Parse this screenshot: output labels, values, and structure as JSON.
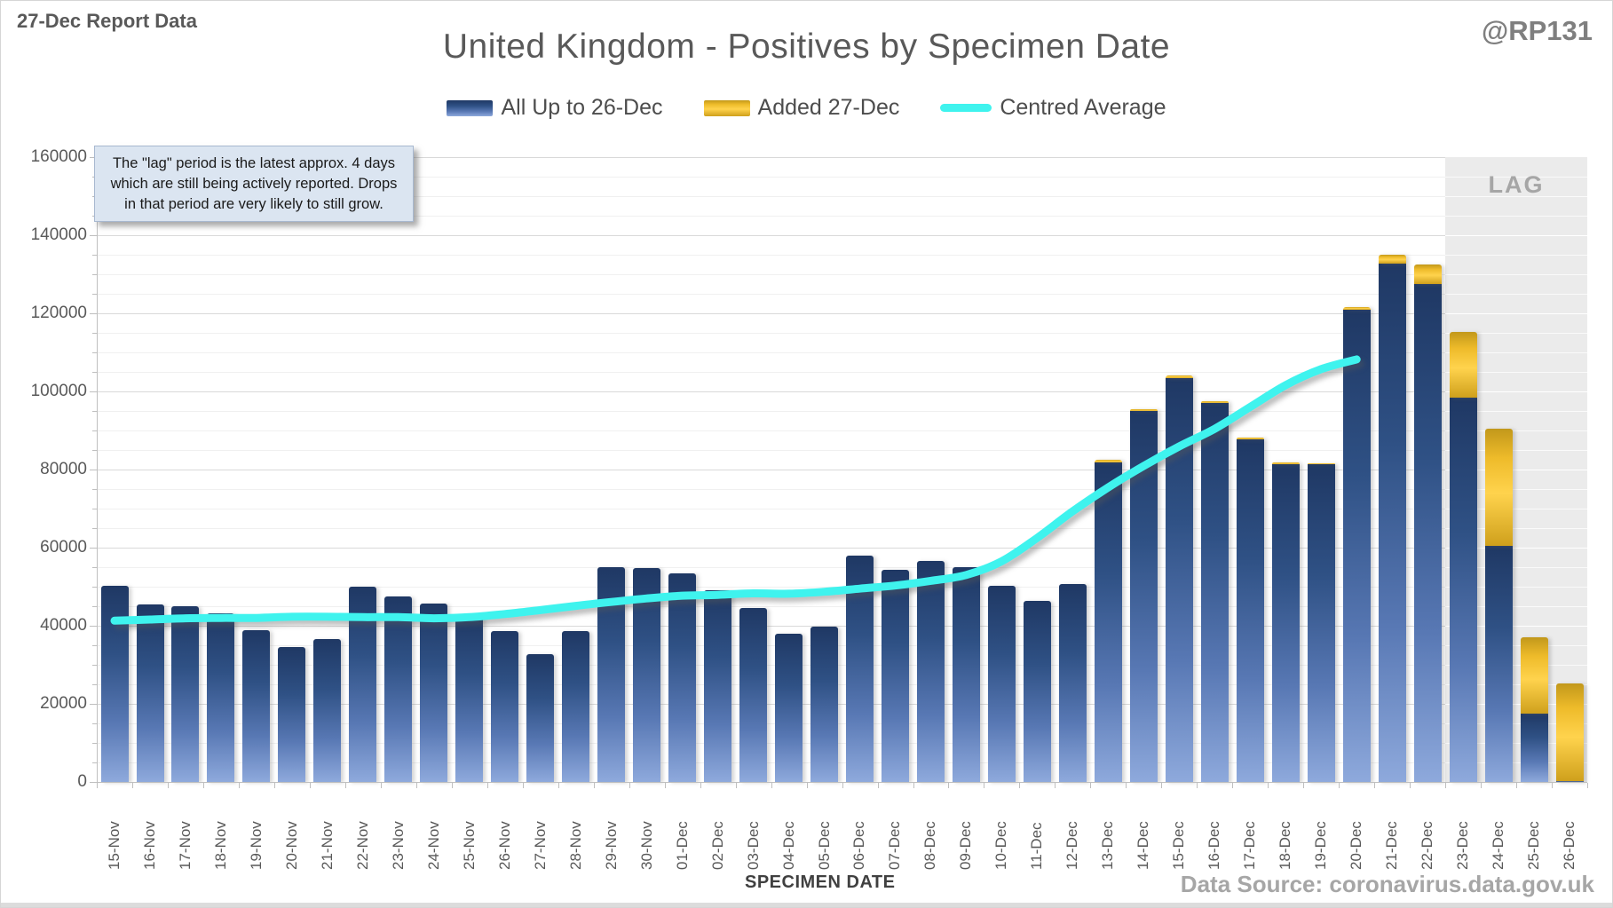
{
  "header": {
    "report_label": "27-Dec Report Data",
    "watermark": "@RP131",
    "title": "United Kingdom - Positives by Specimen Date"
  },
  "legend": [
    {
      "label": "All Up to 26-Dec",
      "marker": "bar-blue-swatch"
    },
    {
      "label": "Added 27-Dec",
      "marker": "bar-gold-swatch"
    },
    {
      "label": "Centred Average",
      "marker": "cyan-line-swatch"
    }
  ],
  "annotation": {
    "lines": [
      "The \"lag\" period is the latest approx. 4 days",
      "which are still being actively reported.  Drops",
      "in that period are very likely to still grow."
    ]
  },
  "lag": {
    "label": "LAG",
    "start_category": "23-Dec"
  },
  "axes": {
    "x_title": "SPECIMEN DATE",
    "y_ticks": [
      0,
      20000,
      40000,
      60000,
      80000,
      100000,
      120000,
      140000,
      160000
    ],
    "y_major": 20000,
    "y_minor": 5000
  },
  "footer": {
    "source": "Data Source: coronavirus.data.gov.uk"
  },
  "colors": {
    "bar_blue_top": "#1f3864",
    "bar_blue_bottom": "#8ea9dc",
    "bar_gold": "#ffd34d",
    "average_line": "#3ff3ee",
    "lag_band": "#ebebeb",
    "title_text": "#595959",
    "muted_text": "#a6a6a6"
  },
  "chart_data": {
    "type": "bar",
    "title": "United Kingdom - Positives by Specimen Date",
    "xlabel": "SPECIMEN DATE",
    "ylabel": "",
    "ylim": [
      0,
      160000
    ],
    "grid": "major+minor",
    "legend_position": "top",
    "categories": [
      "15-Nov",
      "16-Nov",
      "17-Nov",
      "18-Nov",
      "19-Nov",
      "20-Nov",
      "21-Nov",
      "22-Nov",
      "23-Nov",
      "24-Nov",
      "25-Nov",
      "26-Nov",
      "27-Nov",
      "28-Nov",
      "29-Nov",
      "30-Nov",
      "01-Dec",
      "02-Dec",
      "03-Dec",
      "04-Dec",
      "05-Dec",
      "06-Dec",
      "07-Dec",
      "08-Dec",
      "09-Dec",
      "10-Dec",
      "11-Dec",
      "12-Dec",
      "13-Dec",
      "14-Dec",
      "15-Dec",
      "16-Dec",
      "17-Dec",
      "18-Dec",
      "19-Dec",
      "20-Dec",
      "21-Dec",
      "22-Dec",
      "23-Dec",
      "24-Dec",
      "25-Dec",
      "26-Dec"
    ],
    "series": [
      {
        "name": "All Up to 26-Dec",
        "type": "bar-stacked",
        "values": [
          50200,
          45500,
          45100,
          43200,
          38800,
          34600,
          36500,
          49900,
          47400,
          45700,
          42300,
          38600,
          32700,
          38700,
          55100,
          54700,
          53500,
          49100,
          44600,
          38000,
          39800,
          57900,
          54300,
          56600,
          54900,
          50300,
          46400,
          50600,
          81900,
          94900,
          103500,
          97100,
          87700,
          81400,
          81300,
          120800,
          132700,
          127600,
          98400,
          60500,
          17500,
          300
        ]
      },
      {
        "name": "Added 27-Dec",
        "type": "bar-stacked",
        "values": [
          0,
          0,
          0,
          0,
          0,
          0,
          0,
          0,
          0,
          0,
          0,
          0,
          0,
          0,
          0,
          0,
          0,
          0,
          0,
          0,
          0,
          0,
          0,
          0,
          0,
          0,
          0,
          0,
          500,
          600,
          700,
          400,
          500,
          400,
          300,
          700,
          2200,
          4800,
          16800,
          29900,
          19600,
          25000
        ]
      },
      {
        "name": "Centred Average",
        "type": "line",
        "values": [
          41300,
          41600,
          41900,
          42000,
          42000,
          42300,
          42300,
          42200,
          42200,
          41900,
          42200,
          43000,
          44000,
          45100,
          46100,
          47000,
          47700,
          47900,
          48300,
          48200,
          48700,
          49500,
          50300,
          51500,
          53000,
          56500,
          62500,
          69300,
          75400,
          80900,
          85900,
          90400,
          96000,
          101600,
          105700,
          108200,
          null,
          null,
          null,
          null,
          null,
          null
        ]
      }
    ]
  }
}
